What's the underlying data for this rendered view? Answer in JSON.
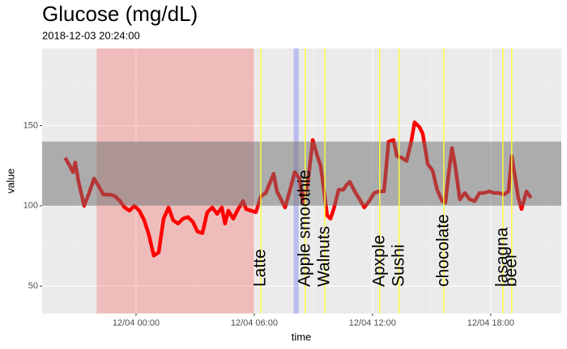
{
  "chart_data": {
    "type": "line",
    "title": "Glucose (mg/dL)",
    "subtitle": "2018-12-03 20:24:00",
    "x_label": "time",
    "y_label": "value",
    "color": "#ff0000",
    "grid": true,
    "ylim": [
      33,
      198
    ],
    "yticks": [
      50,
      100,
      150
    ],
    "xlim": [
      "12/03 19:14",
      "12/04 21:35"
    ],
    "xticks": [
      "12/04 00:00",
      "12/04 06:00",
      "12/04 12:00",
      "12/04 18:00"
    ],
    "target_range": [
      100,
      140
    ],
    "shaded_periods": [
      {
        "start": "12/03 22:00",
        "end": "12/04 06:00",
        "color": "#ff0000"
      },
      {
        "start": "12/04 08:00",
        "end": "12/04 08:15",
        "color": "#0000ff"
      }
    ],
    "events": [
      {
        "time": "12/04 06:20",
        "label": "Latte"
      },
      {
        "time": "12/04 08:35",
        "label": "Apple smoothie"
      },
      {
        "time": "12/04 09:35",
        "label": "Walnuts"
      },
      {
        "time": "12/04 12:22",
        "label": "Apxple"
      },
      {
        "time": "12/04 13:21",
        "label": "Sushi"
      },
      {
        "time": "12/04 15:37",
        "label": "chocolate"
      },
      {
        "time": "12/04 18:37",
        "label": "lasagna"
      },
      {
        "time": "12/04 19:04",
        "label": "beer"
      }
    ],
    "x": [
      "12/03 20:24",
      "12/03 20:38",
      "12/03 20:48",
      "12/03 20:55",
      "12/03 21:05",
      "12/03 21:22",
      "12/03 21:37",
      "12/03 21:52",
      "12/03 22:07",
      "12/03 22:21",
      "12/03 22:41",
      "12/03 22:56",
      "12/03 23:11",
      "12/03 23:25",
      "12/03 23:40",
      "12/03 23:55",
      "12/04 00:10",
      "12/04 00:25",
      "12/04 00:39",
      "12/04 00:54",
      "12/04 01:09",
      "12/04 01:24",
      "12/04 01:39",
      "12/04 01:53",
      "12/04 02:08",
      "12/04 02:23",
      "12/04 02:38",
      "12/04 02:53",
      "12/04 03:07",
      "12/04 03:22",
      "12/04 03:37",
      "12/04 03:52",
      "12/04 04:07",
      "12/04 04:21",
      "12/04 04:31",
      "12/04 04:41",
      "12/04 04:56",
      "12/04 05:11",
      "12/04 05:26",
      "12/04 05:35",
      "12/04 05:50",
      "12/04 06:05",
      "12/04 06:20",
      "12/04 06:35",
      "12/04 06:49",
      "12/04 06:59",
      "12/04 07:09",
      "12/04 07:24",
      "12/04 07:34",
      "12/04 07:49",
      "12/04 08:03",
      "12/04 08:18",
      "12/04 08:28",
      "12/04 08:43",
      "12/04 08:58",
      "12/04 09:12",
      "12/04 09:22",
      "12/04 09:32",
      "12/04 09:42",
      "12/04 09:52",
      "12/04 10:02",
      "12/04 10:17",
      "12/04 10:31",
      "12/04 10:41",
      "12/04 10:51",
      "12/04 11:06",
      "12/04 11:21",
      "12/04 11:35",
      "12/04 11:50",
      "12/04 12:05",
      "12/04 12:20",
      "12/04 12:35",
      "12/04 12:49",
      "12/04 13:04",
      "12/04 13:14",
      "12/04 13:29",
      "12/04 13:44",
      "12/04 13:58",
      "12/04 14:08",
      "12/04 14:23",
      "12/04 14:33",
      "12/04 14:48",
      "12/04 15:03",
      "12/04 15:17",
      "12/04 15:32",
      "12/04 15:42",
      "12/04 15:52",
      "12/04 16:02",
      "12/04 16:12",
      "12/04 16:26",
      "12/04 16:41",
      "12/04 16:56",
      "12/04 17:11",
      "12/04 17:26",
      "12/04 17:40",
      "12/04 17:55",
      "12/04 18:10",
      "12/04 18:25",
      "12/04 18:40",
      "12/04 18:54",
      "12/04 19:04",
      "12/04 19:14",
      "12/04 19:24",
      "12/04 19:34",
      "12/04 19:49",
      "12/04 20:03"
    ],
    "values": [
      130,
      125,
      121,
      127,
      115,
      100,
      108,
      117,
      112,
      107,
      107,
      106,
      103,
      99,
      97,
      100,
      97,
      91,
      82,
      69,
      71,
      92,
      99,
      91,
      89,
      92,
      93,
      90,
      84,
      83,
      96,
      99,
      95,
      99,
      89,
      97,
      92,
      98,
      103,
      98,
      97,
      96,
      106,
      108,
      115,
      120,
      109,
      103,
      99,
      110,
      121,
      117,
      102,
      114,
      141,
      131,
      125,
      110,
      94,
      92,
      98,
      110,
      110,
      113,
      115,
      109,
      104,
      99,
      103,
      108,
      109,
      109,
      140,
      141,
      131,
      130,
      128,
      140,
      152,
      149,
      145,
      126,
      122,
      110,
      103,
      102,
      120,
      136,
      125,
      104,
      108,
      104,
      103,
      108,
      108,
      109,
      108,
      108,
      107,
      109,
      131,
      118,
      105,
      98,
      109,
      105
    ]
  }
}
